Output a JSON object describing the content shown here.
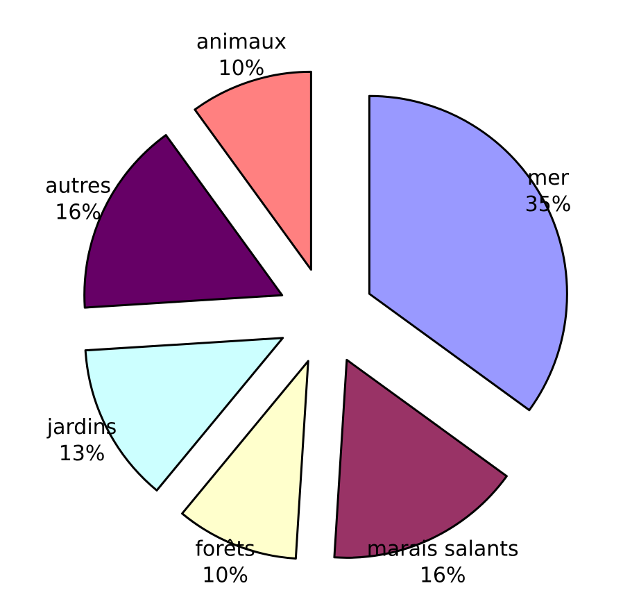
{
  "chart_data": {
    "type": "pie",
    "categories": [
      "mer",
      "marais salants",
      "forêts",
      "jardins",
      "autres",
      "animaux"
    ],
    "values": [
      35,
      16,
      10,
      13,
      16,
      10
    ],
    "value_labels": [
      "35%",
      "16%",
      "10%",
      "13%",
      "16%",
      "10%"
    ],
    "colors": [
      "#9999ff",
      "#993366",
      "#ffffcc",
      "#ccffff",
      "#660066",
      "#ff8080"
    ]
  }
}
